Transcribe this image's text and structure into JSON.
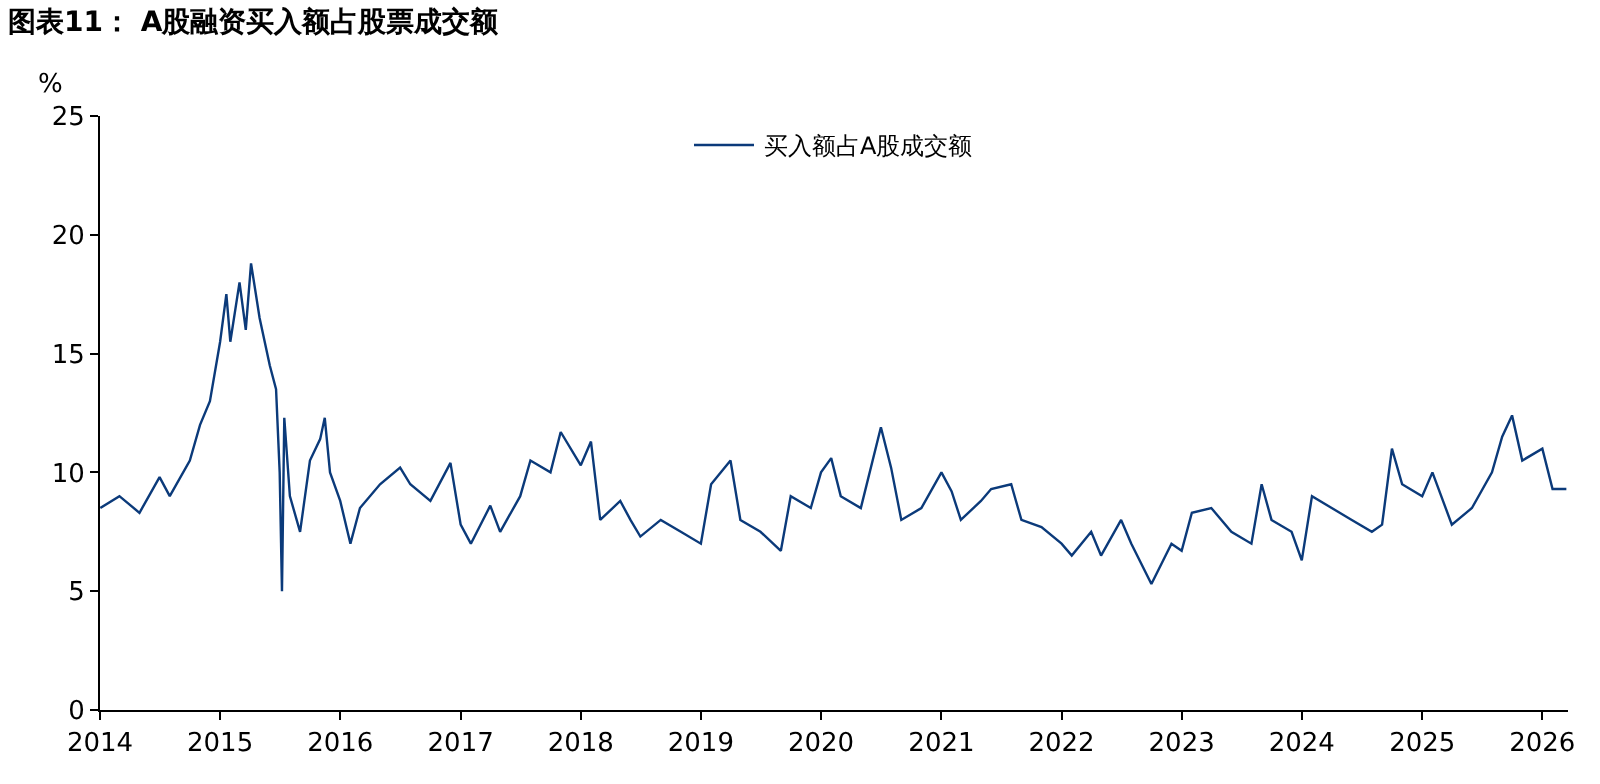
{
  "chart_data": {
    "type": "line",
    "title": "图表11： A股融资买入额占股票成交额",
    "ylabel": "%",
    "x": [
      "2014-01-02",
      "2014-03-01",
      "2014-05-01",
      "2014-07-01",
      "2014-08-01",
      "2014-10-01",
      "2014-11-01",
      "2014-12-01",
      "2015-01-01",
      "2015-01-20",
      "2015-02-01",
      "2015-03-01",
      "2015-03-20",
      "2015-04-05",
      "2015-05-01",
      "2015-06-01",
      "2015-06-20",
      "2015-07-01",
      "2015-07-08",
      "2015-07-15",
      "2015-08-01",
      "2015-09-01",
      "2015-10-01",
      "2015-11-01",
      "2015-11-15",
      "2015-12-01",
      "2016-01-01",
      "2016-02-01",
      "2016-03-01",
      "2016-05-01",
      "2016-07-01",
      "2016-08-01",
      "2016-10-01",
      "2016-12-01",
      "2017-01-01",
      "2017-02-01",
      "2017-04-01",
      "2017-05-01",
      "2017-07-01",
      "2017-08-01",
      "2017-10-01",
      "2017-11-01",
      "2018-01-01",
      "2018-02-01",
      "2018-03-01",
      "2018-05-01",
      "2018-06-01",
      "2018-07-01",
      "2018-09-01",
      "2018-11-01",
      "2019-01-01",
      "2019-02-01",
      "2019-04-01",
      "2019-05-01",
      "2019-07-01",
      "2019-09-01",
      "2019-10-01",
      "2019-12-01",
      "2020-01-01",
      "2020-02-01",
      "2020-03-01",
      "2020-05-01",
      "2020-07-01",
      "2020-08-01",
      "2020-09-01",
      "2020-11-01",
      "2021-01-01",
      "2021-02-01",
      "2021-03-01",
      "2021-05-01",
      "2021-06-01",
      "2021-08-01",
      "2021-09-01",
      "2021-11-01",
      "2022-01-01",
      "2022-02-01",
      "2022-04-01",
      "2022-05-01",
      "2022-07-01",
      "2022-08-01",
      "2022-10-01",
      "2022-12-01",
      "2023-01-01",
      "2023-02-01",
      "2023-04-01",
      "2023-06-01",
      "2023-08-01",
      "2023-09-01",
      "2023-10-01",
      "2023-12-01",
      "2024-01-01",
      "2024-02-01",
      "2024-04-01",
      "2024-06-01",
      "2024-08-01",
      "2024-09-01",
      "2024-10-01",
      "2024-11-01",
      "2025-01-01",
      "2025-02-01",
      "2025-04-01",
      "2025-06-01",
      "2025-08-01",
      "2025-09-01",
      "2025-10-01",
      "2025-11-01",
      "2026-01-01",
      "2026-02-01",
      "2026-03-15"
    ],
    "series": [
      {
        "name": "买入额占A股成交额",
        "color": "#0b3a7a",
        "values": [
          8.5,
          9.0,
          8.3,
          9.8,
          9.0,
          10.5,
          12,
          13,
          15.5,
          17.5,
          15.5,
          18,
          16,
          18.8,
          16.5,
          14.5,
          13.5,
          10,
          5.0,
          12.3,
          9,
          7.5,
          10.5,
          11.4,
          12.3,
          10,
          8.8,
          7.0,
          8.5,
          9.5,
          10.2,
          9.5,
          8.8,
          10.4,
          7.8,
          7.0,
          8.6,
          7.5,
          9.0,
          10.5,
          10.0,
          11.7,
          10.3,
          11.3,
          8.0,
          8.8,
          8.0,
          7.3,
          8.0,
          7.5,
          7.0,
          9.5,
          10.5,
          8.0,
          7.5,
          6.7,
          9.0,
          8.5,
          10.0,
          10.6,
          9.0,
          8.5,
          11.9,
          10.2,
          8.0,
          8.5,
          10.0,
          9.2,
          8.0,
          8.8,
          9.3,
          9.5,
          8.0,
          7.7,
          7.0,
          6.5,
          7.5,
          6.5,
          8.0,
          7.0,
          5.3,
          7.0,
          6.7,
          8.3,
          8.5,
          7.5,
          7.0,
          9.5,
          8.0,
          7.5,
          6.3,
          9.0,
          8.5,
          8.0,
          7.5,
          7.8,
          11.0,
          9.5,
          9.0,
          10.0,
          7.8,
          8.5,
          10.0,
          11.5,
          12.4,
          10.5,
          11.0,
          9.3,
          9.3
        ]
      }
    ],
    "xlim": [
      "2014-01-01",
      "2026-03-20"
    ],
    "xticks": [
      {
        "value": "2014-01-01",
        "label": "2014"
      },
      {
        "value": "2015-01-01",
        "label": "2015"
      },
      {
        "value": "2016-01-01",
        "label": "2016"
      },
      {
        "value": "2017-01-01",
        "label": "2017"
      },
      {
        "value": "2018-01-01",
        "label": "2018"
      },
      {
        "value": "2019-01-01",
        "label": "2019"
      },
      {
        "value": "2020-01-01",
        "label": "2020"
      },
      {
        "value": "2021-01-01",
        "label": "2021"
      },
      {
        "value": "2022-01-01",
        "label": "2022"
      },
      {
        "value": "2023-01-01",
        "label": "2023"
      },
      {
        "value": "2024-01-01",
        "label": "2024"
      },
      {
        "value": "2025-01-01",
        "label": "2025"
      },
      {
        "value": "2026-01-01",
        "label": "2026"
      }
    ],
    "ylim": [
      0,
      25
    ],
    "yticks": [
      0,
      5,
      10,
      15,
      20,
      25
    ],
    "legend": "top",
    "line_style": "solid"
  }
}
